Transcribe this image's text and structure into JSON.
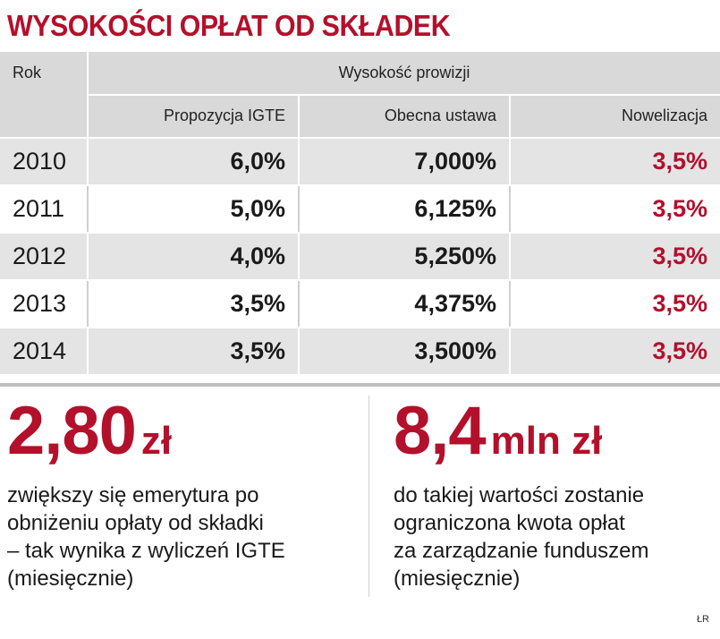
{
  "title": "WYSOKOŚCI OPŁAT OD SKŁADEK",
  "table": {
    "year_header": "Rok",
    "group_header": "Wysokość prowizji",
    "columns": [
      "Propozycja IGTE",
      "Obecna ustawa",
      "Nowelizacja"
    ],
    "rows": [
      {
        "year": "2010",
        "igte": "6,0%",
        "obecna": "7,000%",
        "nowelizacja": "3,5%"
      },
      {
        "year": "2011",
        "igte": "5,0%",
        "obecna": "6,125%",
        "nowelizacja": "3,5%"
      },
      {
        "year": "2012",
        "igte": "4,0%",
        "obecna": "5,250%",
        "nowelizacja": "3,5%"
      },
      {
        "year": "2013",
        "igte": "3,5%",
        "obecna": "4,375%",
        "nowelizacja": "3,5%"
      },
      {
        "year": "2014",
        "igte": "3,5%",
        "obecna": "3,500%",
        "nowelizacja": "3,5%"
      }
    ]
  },
  "stats": {
    "left": {
      "number": "2,80",
      "unit": "zł",
      "lines": [
        "zwiększy się emerytura po",
        "obniżeniu opłaty od składki",
        "– tak wynika z wyliczeń IGTE",
        "(miesięcznie)"
      ]
    },
    "right": {
      "number": "8,4",
      "unit": "mln zł",
      "lines": [
        "do takiej wartości zostanie",
        "ograniczona kwota opłat",
        "za zarządzanie funduszem",
        "(miesięcznie)"
      ]
    }
  },
  "credit": "ŁR",
  "colors": {
    "accent": "#b3102c",
    "header_bg": "#d9d9da",
    "row_shade": "#e4e4e5"
  },
  "chart_data": {
    "type": "table",
    "title": "WYSOKOŚCI OPŁAT OD SKŁADEK",
    "columns": [
      "Rok",
      "Propozycja IGTE",
      "Obecna ustawa",
      "Nowelizacja"
    ],
    "categories": [
      "2010",
      "2011",
      "2012",
      "2013",
      "2014"
    ],
    "series": [
      {
        "name": "Propozycja IGTE",
        "values": [
          6.0,
          5.0,
          4.0,
          3.5,
          3.5
        ]
      },
      {
        "name": "Obecna ustawa",
        "values": [
          7.0,
          6.125,
          5.25,
          4.375,
          3.5
        ]
      },
      {
        "name": "Nowelizacja",
        "values": [
          3.5,
          3.5,
          3.5,
          3.5,
          3.5
        ]
      }
    ]
  }
}
